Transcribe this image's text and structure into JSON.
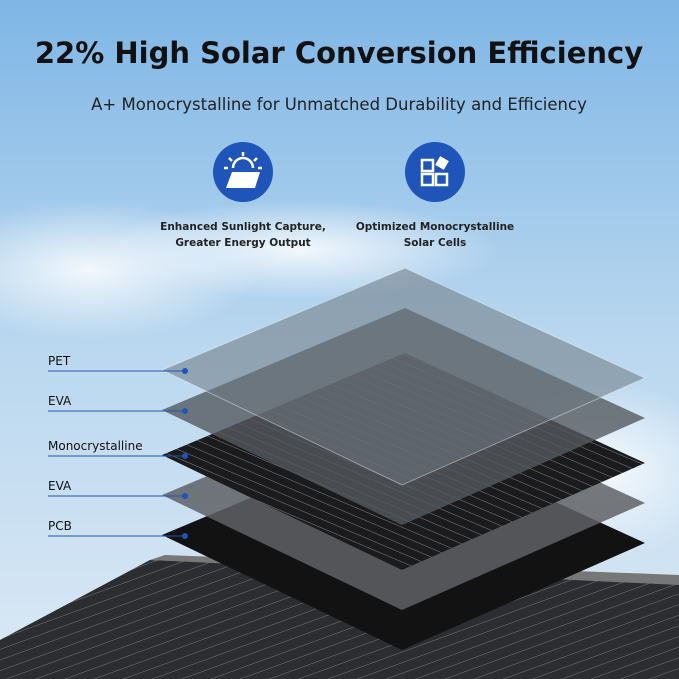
{
  "header": {
    "title": "22% High Solar Conversion Efficiency",
    "subtitle": "A+ Monocrystalline for Unmatched Durability and Efficiency"
  },
  "features": [
    {
      "lines": [
        "Enhanced Sunlight Capture,",
        "Greater Energy Output"
      ]
    },
    {
      "lines": [
        "Optimized Monocrystalline",
        "Solar Cells"
      ]
    }
  ],
  "layers": [
    "PET",
    "EVA",
    "Monocrystalline",
    "EVA",
    "PCB"
  ]
}
